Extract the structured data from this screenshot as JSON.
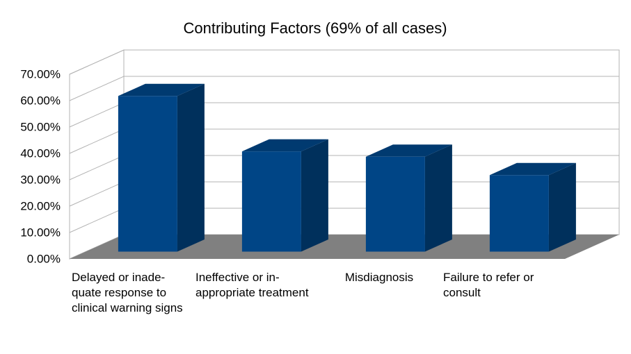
{
  "chart_data": {
    "type": "bar3d",
    "title": "Contributing Factors (69% of all cases)",
    "categories": [
      "Delayed or inade-quate response to clinical warning signs",
      "Ineffective or in-appropriate treatment",
      "Misdiagnosis",
      "Failure to refer or consult"
    ],
    "values": [
      59,
      38,
      36,
      29
    ],
    "color": "#004586",
    "ylim": [
      0,
      70
    ],
    "yticks": [
      {
        "value": 0,
        "label": "0.00%"
      },
      {
        "value": 10,
        "label": "10.00%"
      },
      {
        "value": 20,
        "label": "20.00%"
      },
      {
        "value": 30,
        "label": "30.00%"
      },
      {
        "value": 40,
        "label": "40.00%"
      },
      {
        "value": 50,
        "label": "50.00%"
      },
      {
        "value": 60,
        "label": "60.00%"
      },
      {
        "value": 70,
        "label": "70.00%"
      }
    ],
    "grid": true
  }
}
